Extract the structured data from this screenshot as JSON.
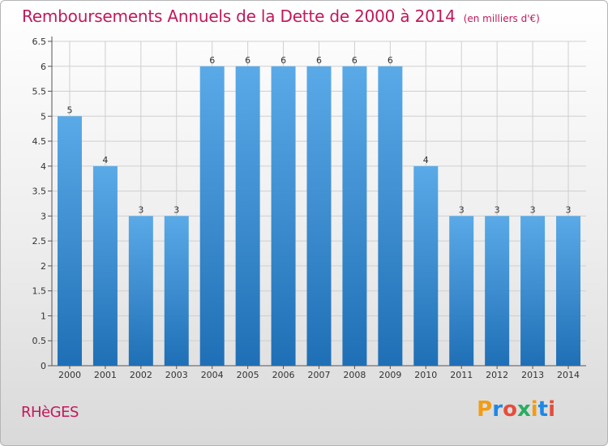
{
  "title": "Remboursements Annuels de la Dette de 2000 à 2014",
  "unit": "(en milliers d'€)",
  "commune": "RHèGES",
  "brand": {
    "text": "Proxiti",
    "colors": [
      "#f39c12",
      "#1e88e5",
      "#e74c3c",
      "#27ae60",
      "#f39c12",
      "#1e88e5",
      "#e74c3c"
    ]
  },
  "colors": {
    "title": "#c2185b",
    "bar_top": "#5aaae8",
    "bar_bottom": "#1f6fb6",
    "grid": "#cfcfcf"
  },
  "chart_data": {
    "type": "bar",
    "categories": [
      "2000",
      "2001",
      "2002",
      "2003",
      "2004",
      "2005",
      "2006",
      "2007",
      "2008",
      "2009",
      "2010",
      "2011",
      "2012",
      "2013",
      "2014"
    ],
    "values": [
      5,
      4,
      3,
      3,
      6,
      6,
      6,
      6,
      6,
      6,
      4,
      3,
      3,
      3,
      3
    ],
    "data_labels": [
      "5",
      "4",
      "3",
      "3",
      "6",
      "6",
      "6",
      "6",
      "6",
      "6",
      "4",
      "3",
      "3",
      "3",
      "3"
    ],
    "y_ticks": [
      "0",
      "0.5",
      "1",
      "1.5",
      "2",
      "2.5",
      "3",
      "3.5",
      "4",
      "4.5",
      "5",
      "5.5",
      "6",
      "6.5"
    ],
    "ylim": [
      0,
      6.5
    ],
    "grid": true
  }
}
